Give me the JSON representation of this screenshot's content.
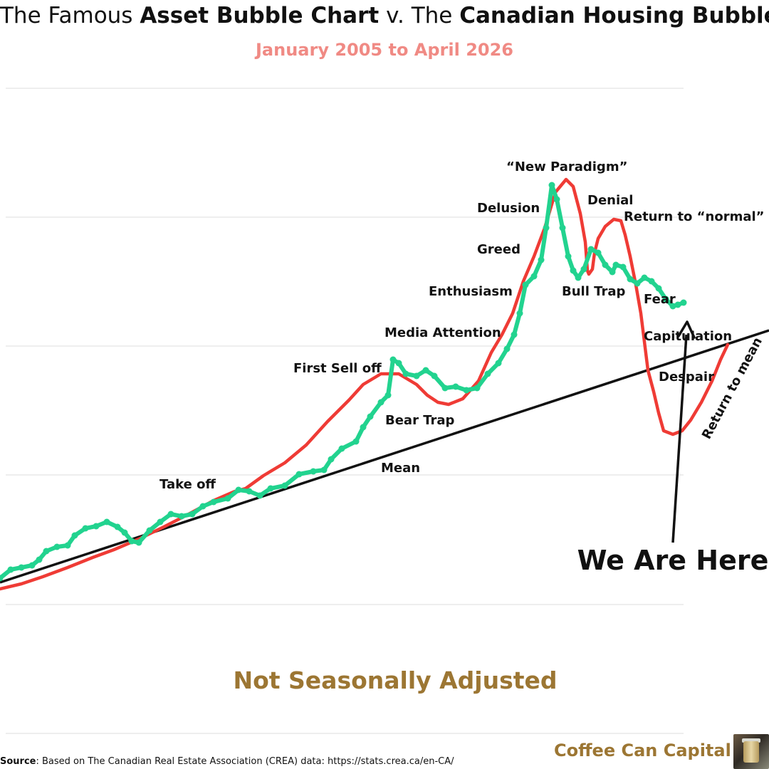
{
  "title": {
    "part1": "The Famous ",
    "part2": "Asset Bubble Chart",
    "part3": " v. The ",
    "part4": "Canadian Housing Bubble"
  },
  "subtitle": "January 2005 to April 2026",
  "footer_note": "Not Seasonally Adjusted",
  "source": {
    "label": "Source",
    "text": ": Based on The Canadian Real Estate Association (CREA) data: https://stats.crea.ca/en-CA/"
  },
  "brand": {
    "name": "Coffee Can Capital",
    "logo_icon": "coffee-can-icon"
  },
  "colors": {
    "bubble_curve": "#ef3b35",
    "housing_series": "#22d38f",
    "mean_line": "#111111",
    "subtitle": "#f08a84",
    "brand": "#9c7633",
    "grid": "#dddddd"
  },
  "chart_data": {
    "type": "line",
    "grid": true,
    "axes_visible": false,
    "series": [],
    "annotations": [
      "Take off",
      "First Sell off",
      "Media Attention",
      "Bear Trap",
      "Mean",
      "Enthusiasm",
      "Greed",
      "Delusion",
      "“New Paradigm”",
      "Denial",
      "Return to “normal”",
      "Bull Trap",
      "Fear",
      "Capitulation",
      "Despair",
      "Return to mean"
    ],
    "marker_label": "We Are Here"
  }
}
